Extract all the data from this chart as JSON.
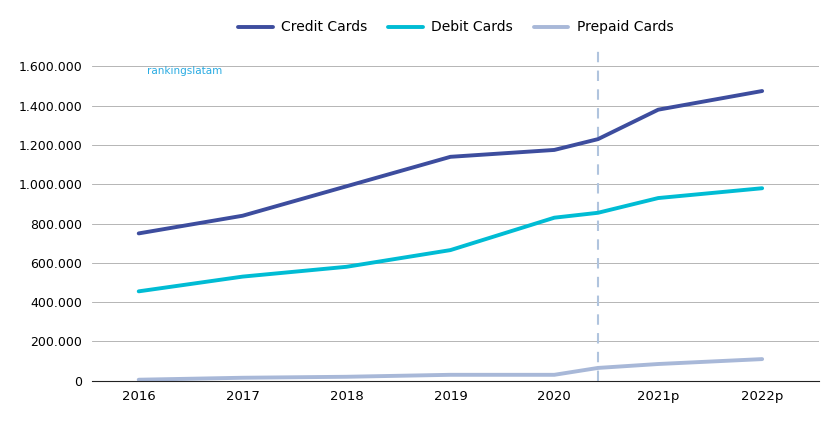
{
  "x_values": [
    2016,
    2017,
    2018,
    2019,
    2020,
    2020.42,
    2021,
    2022
  ],
  "x_tick_positions": [
    2016,
    2017,
    2018,
    2019,
    2020,
    2021,
    2022
  ],
  "x_tick_labels": [
    "2016",
    "2017",
    "2018",
    "2019",
    "2020",
    "2021p",
    "2022p"
  ],
  "credit_cards": [
    750000,
    840000,
    990000,
    1140000,
    1175000,
    1230000,
    1380000,
    1475000
  ],
  "debit_cards": [
    455000,
    530000,
    580000,
    665000,
    830000,
    855000,
    930000,
    980000
  ],
  "prepaid_cards": [
    5000,
    15000,
    20000,
    30000,
    30000,
    65000,
    85000,
    110000
  ],
  "credit_color": "#3d4d9e",
  "debit_color": "#00bcd4",
  "prepaid_color": "#a8b8d8",
  "vline_x": 2020.42,
  "vline_color": "#b0c4de",
  "watermark": "rankingslatam",
  "watermark_color": "#29abe2",
  "ylim": [
    0,
    1680000
  ],
  "yticks": [
    0,
    200000,
    400000,
    600000,
    800000,
    1000000,
    1200000,
    1400000,
    1600000
  ],
  "legend_labels": [
    "Credit Cards",
    "Debit Cards",
    "Prepaid Cards"
  ],
  "background_color": "#ffffff",
  "grid_color": "#aaaaaa"
}
